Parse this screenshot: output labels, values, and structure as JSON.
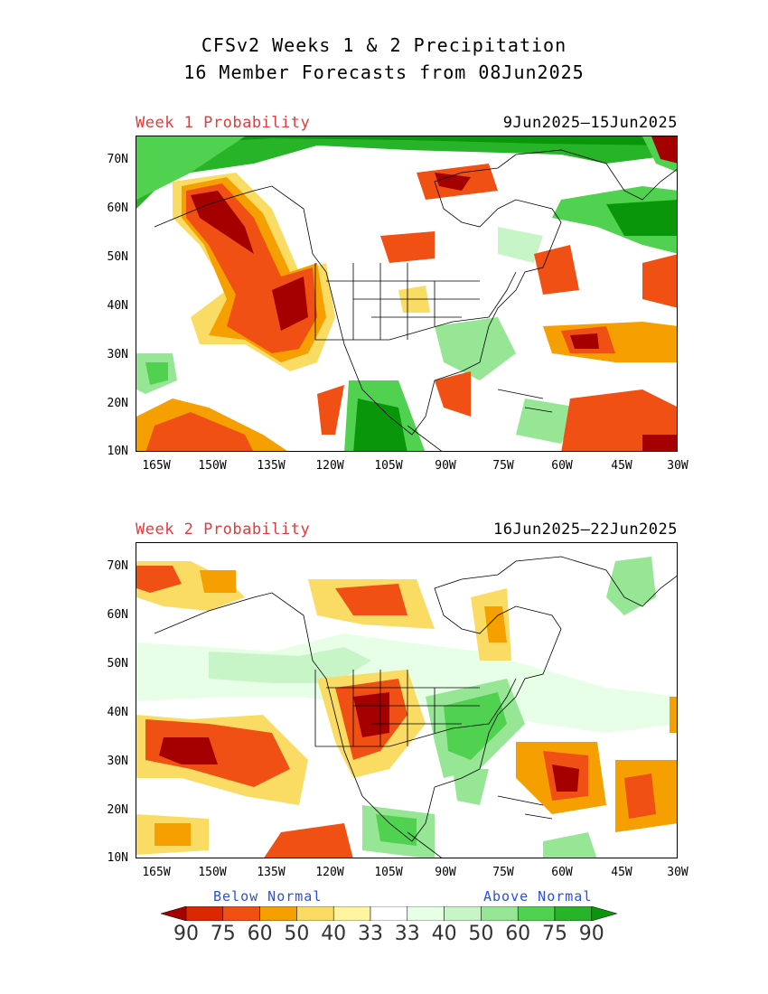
{
  "header": {
    "title_line1": "CFSv2 Weeks 1 & 2 Precipitation",
    "title_line2": "16 Member Forecasts from 08Jun2025"
  },
  "panels": [
    {
      "label": "Week 1 Probability",
      "dates": "9Jun2025—15Jun2025"
    },
    {
      "label": "Week 2 Probability",
      "dates": "16Jun2025—22Jun2025"
    }
  ],
  "axes": {
    "lat_labels": [
      "70N",
      "60N",
      "50N",
      "40N",
      "30N",
      "20N",
      "10N"
    ],
    "lon_labels": [
      "165W",
      "150W",
      "135W",
      "120W",
      "105W",
      "90W",
      "75W",
      "60W",
      "45W",
      "30W"
    ]
  },
  "legend": {
    "below_label": "Below Normal",
    "above_label": "Above Normal",
    "values": [
      "90",
      "75",
      "60",
      "50",
      "40",
      "33",
      "33",
      "40",
      "50",
      "60",
      "75",
      "90"
    ],
    "colors": [
      "#a50000",
      "#dc2800",
      "#f05014",
      "#f5a000",
      "#fadc64",
      "#fff5a0",
      "#ffffff",
      "#e6ffe6",
      "#c8f5c8",
      "#96e696",
      "#50d250",
      "#28b428",
      "#0a960a"
    ]
  },
  "colors": {
    "title_red": "#e03c3c",
    "legend_blue": "#2c4fd6"
  }
}
